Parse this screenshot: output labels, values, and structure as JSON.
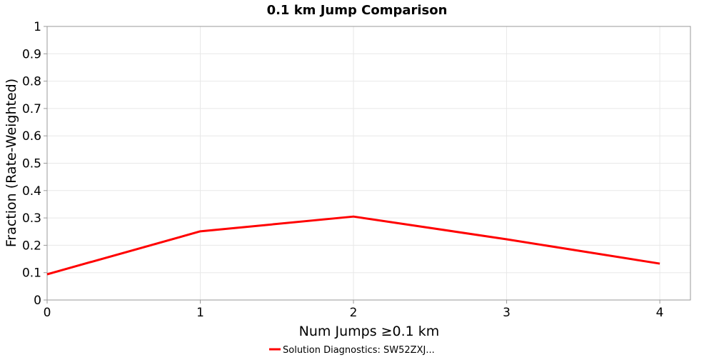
{
  "chart_data": {
    "type": "line",
    "title": "0.1 km Jump Comparison",
    "xlabel": "Num Jumps ≥0.1 km",
    "ylabel": "Fraction (Rate-Weighted)",
    "xlim": [
      0,
      4.2
    ],
    "ylim": [
      0,
      1
    ],
    "x_ticks": [
      "0",
      "1",
      "2",
      "3",
      "4"
    ],
    "y_ticks": [
      "0",
      "0.1",
      "0.2",
      "0.3",
      "0.4",
      "0.5",
      "0.6",
      "0.7",
      "0.8",
      "0.9",
      "1"
    ],
    "grid": true,
    "legend_position": "bottom-center",
    "series": [
      {
        "name": "Solution Diagnostics: SW52ZXJ...",
        "color": "#ff0000",
        "x": [
          0,
          1,
          2,
          3,
          4
        ],
        "y": [
          0.094,
          0.251,
          0.305,
          0.222,
          0.133
        ]
      }
    ]
  }
}
